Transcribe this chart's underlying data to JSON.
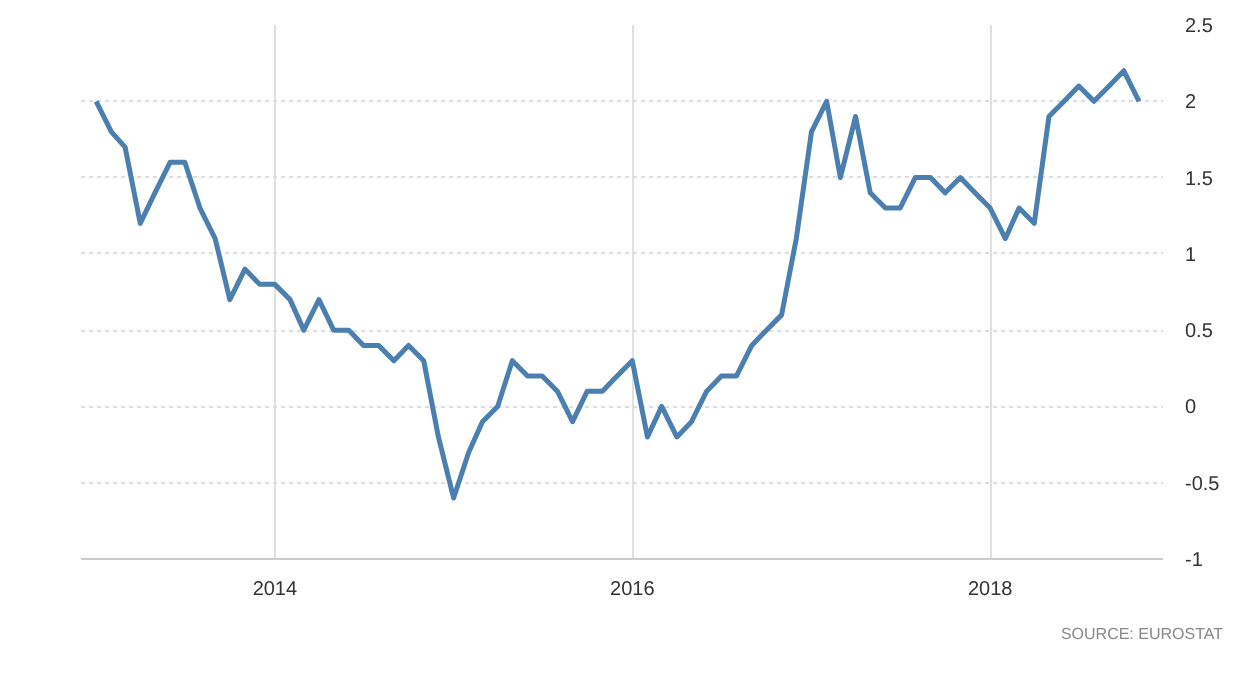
{
  "chart_data": {
    "type": "line",
    "x": [
      "2013-01",
      "2013-02",
      "2013-03",
      "2013-04",
      "2013-05",
      "2013-06",
      "2013-07",
      "2013-08",
      "2013-09",
      "2013-10",
      "2013-11",
      "2013-12",
      "2014-01",
      "2014-02",
      "2014-03",
      "2014-04",
      "2014-05",
      "2014-06",
      "2014-07",
      "2014-08",
      "2014-09",
      "2014-10",
      "2014-11",
      "2014-12",
      "2015-01",
      "2015-02",
      "2015-03",
      "2015-04",
      "2015-05",
      "2015-06",
      "2015-07",
      "2015-08",
      "2015-09",
      "2015-10",
      "2015-11",
      "2015-12",
      "2016-01",
      "2016-02",
      "2016-03",
      "2016-04",
      "2016-05",
      "2016-06",
      "2016-07",
      "2016-08",
      "2016-09",
      "2016-10",
      "2016-11",
      "2016-12",
      "2017-01",
      "2017-02",
      "2017-03",
      "2017-04",
      "2017-05",
      "2017-06",
      "2017-07",
      "2017-08",
      "2017-09",
      "2017-10",
      "2017-11",
      "2017-12",
      "2018-01",
      "2018-02",
      "2018-03",
      "2018-04",
      "2018-05",
      "2018-06",
      "2018-07",
      "2018-08",
      "2018-09",
      "2018-10",
      "2018-11"
    ],
    "series": [
      {
        "color": "#4a7fb0",
        "values": [
          2.0,
          1.8,
          1.7,
          1.2,
          1.4,
          1.6,
          1.6,
          1.3,
          1.1,
          0.7,
          0.9,
          0.8,
          0.8,
          0.7,
          0.5,
          0.7,
          0.5,
          0.5,
          0.4,
          0.4,
          0.3,
          0.4,
          0.3,
          -0.2,
          -0.6,
          -0.3,
          -0.1,
          0.0,
          0.3,
          0.2,
          0.2,
          0.1,
          -0.1,
          0.1,
          0.1,
          0.2,
          0.3,
          -0.2,
          0.0,
          -0.2,
          -0.1,
          0.1,
          0.2,
          0.2,
          0.4,
          0.5,
          0.6,
          1.1,
          1.8,
          2.0,
          1.5,
          1.9,
          1.4,
          1.3,
          1.3,
          1.5,
          1.5,
          1.4,
          1.5,
          1.4,
          1.3,
          1.1,
          1.3,
          1.2,
          1.9,
          2.0,
          2.1,
          2.0,
          2.1,
          2.2,
          2.0
        ]
      }
    ],
    "xlim": [
      "2012-12-01",
      "2018-12-20"
    ],
    "xticks": [
      "2014",
      "2016",
      "2018"
    ],
    "ylim": [
      -1,
      2.5
    ],
    "yticks": [
      -1,
      -0.5,
      0,
      0.5,
      1,
      1.5,
      2,
      2.5
    ],
    "grid": true,
    "line_style": "solid",
    "marker": "none",
    "annotations": [
      "SOURCE: EUROSTAT"
    ]
  }
}
